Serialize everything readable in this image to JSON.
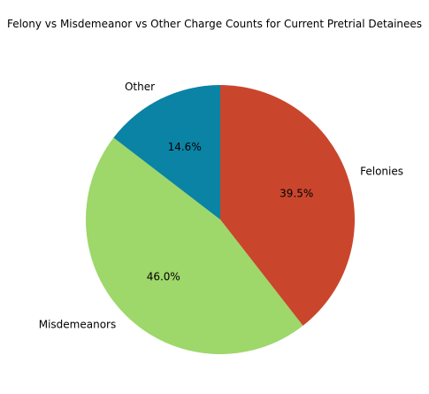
{
  "chart_data": {
    "type": "pie",
    "title": "Felony vs Misdemeanor vs Other Charge Counts for Current Pretrial Detainees",
    "slices": [
      {
        "label": "Felonies",
        "value": 39.5,
        "pct_label": "39.5%",
        "color": "#c9462c"
      },
      {
        "label": "Misdemeanors",
        "value": 46.0,
        "pct_label": "46.0%",
        "color": "#9ed76a"
      },
      {
        "label": "Other",
        "value": 14.6,
        "pct_label": "14.6%",
        "color": "#0a83a5"
      }
    ]
  }
}
